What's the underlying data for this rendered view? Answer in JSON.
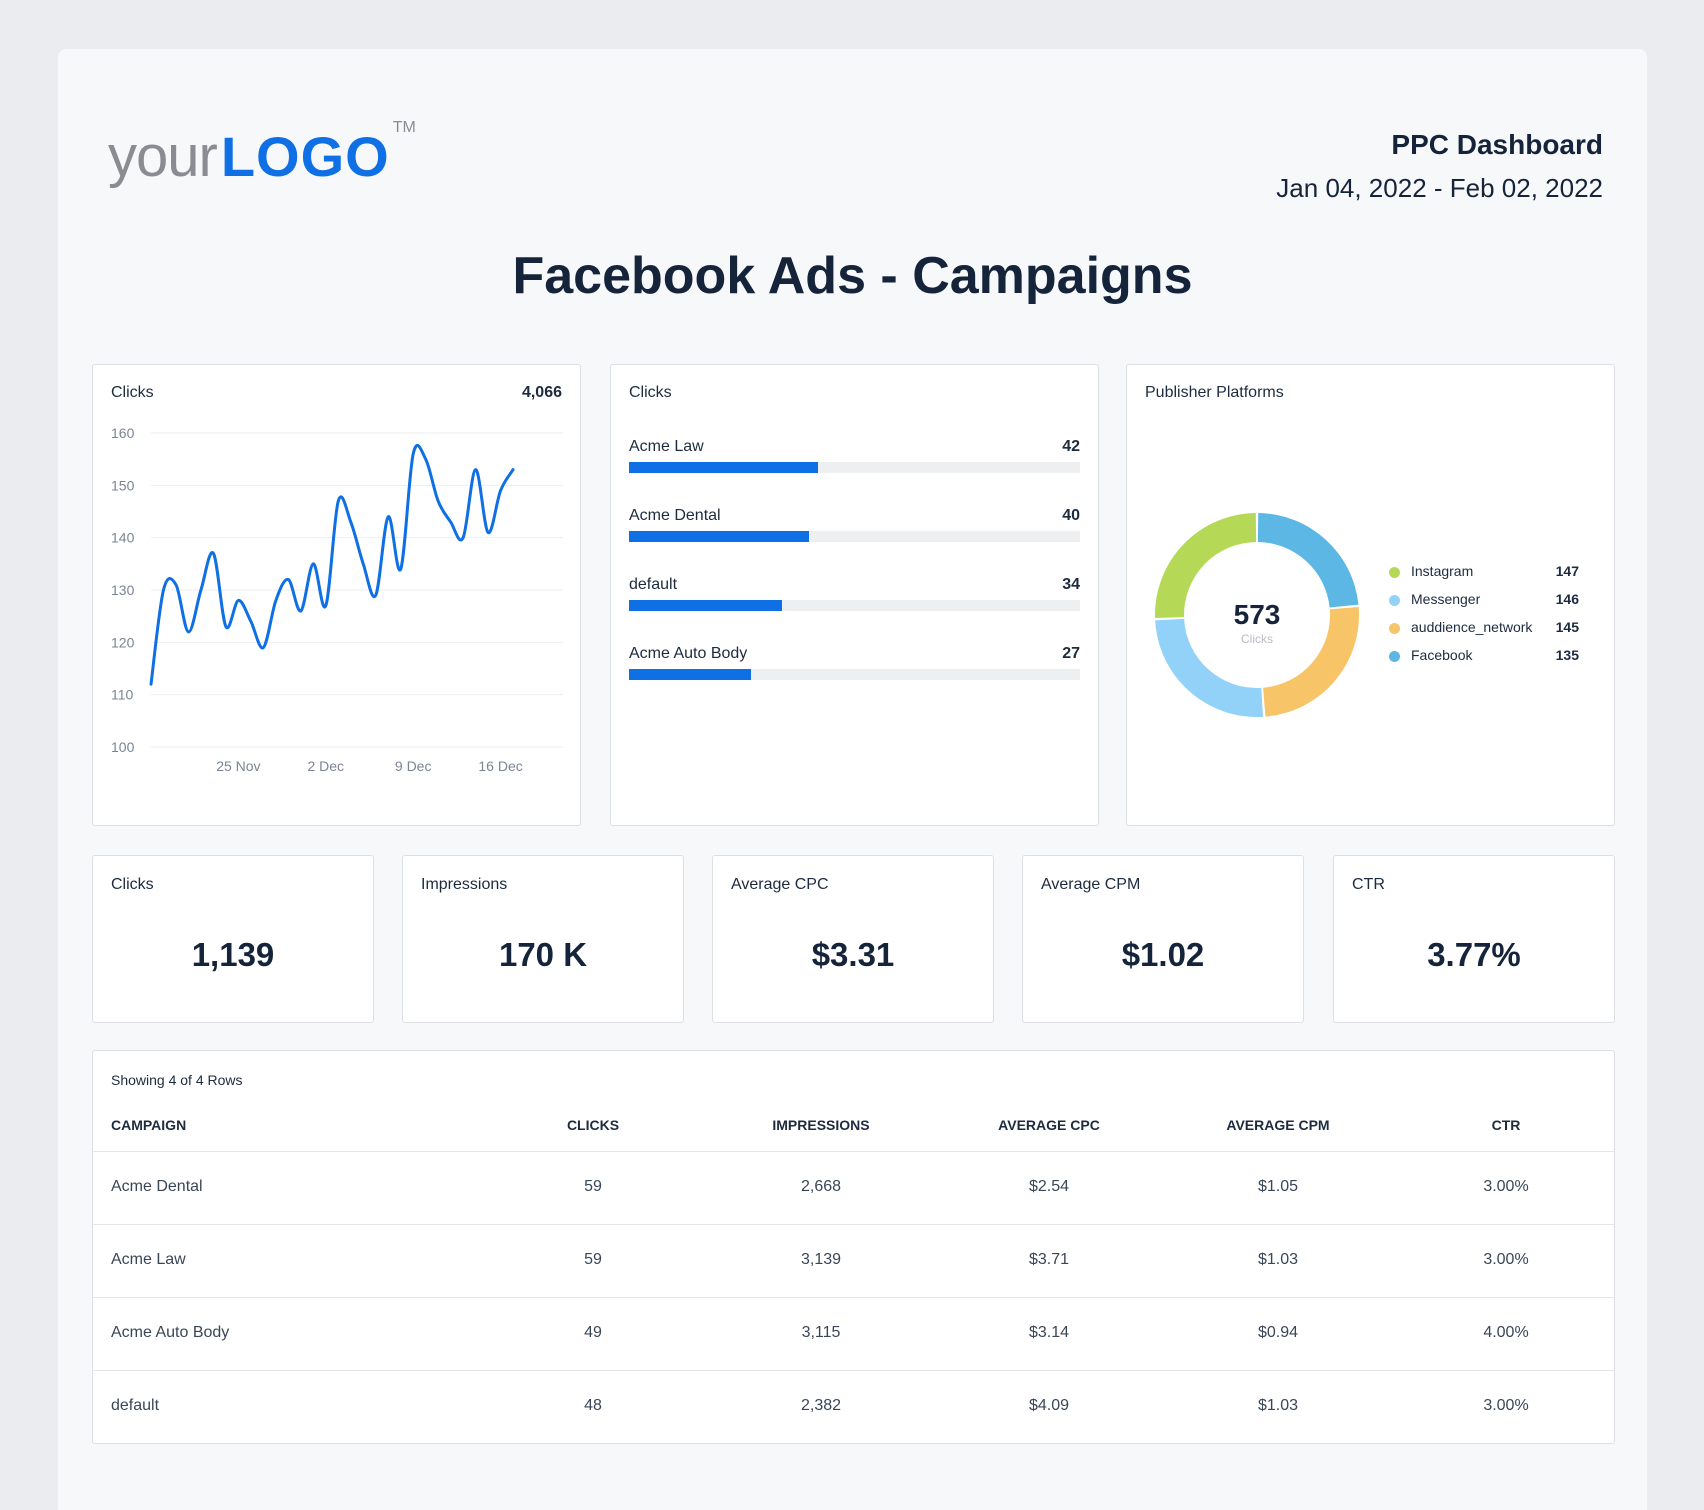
{
  "brand": {
    "your": "your",
    "logo": "LOGO",
    "tm": "TM"
  },
  "header": {
    "dashboard": "PPC Dashboard",
    "date_range": "Jan 04, 2022 - Feb 02, 2022"
  },
  "title": "Facebook Ads - Campaigns",
  "colors": {
    "accent": "#0f6fe5",
    "text": "#15243a",
    "instagram": "#b5d957",
    "messenger": "#92d2f9",
    "audience_network": "#f8c468",
    "facebook": "#5cb7e5"
  },
  "line_card": {
    "label": "Clicks",
    "total": "4,066",
    "chart_data": {
      "type": "line",
      "ylim": [
        100,
        160
      ],
      "yticks": [
        "160",
        "150",
        "140",
        "130",
        "120",
        "110",
        "100"
      ],
      "xticks": [
        {
          "label": "25 Nov",
          "x": 7
        },
        {
          "label": "2 Dec",
          "x": 14
        },
        {
          "label": "9 Dec",
          "x": 21
        },
        {
          "label": "16 Dec",
          "x": 28
        }
      ],
      "x": [
        0,
        1,
        2,
        3,
        4,
        5,
        6,
        7,
        8,
        9,
        10,
        11,
        12,
        13,
        14,
        15,
        16,
        17,
        18,
        19,
        20,
        21,
        22,
        23,
        24,
        25,
        26,
        27,
        28,
        29,
        30,
        31,
        32,
        33
      ],
      "values": [
        112,
        130,
        131,
        122,
        130,
        137,
        123,
        128,
        124,
        119,
        128,
        132,
        126,
        135,
        127,
        147,
        143,
        135,
        129,
        144,
        134,
        156,
        155,
        147,
        143,
        140,
        153,
        141,
        149,
        153,
        null,
        null,
        null,
        null
      ]
    }
  },
  "bar_card": {
    "label": "Clicks",
    "chart_data": {
      "type": "bar",
      "max": 100,
      "items": [
        {
          "name": "Acme Law",
          "value": 42
        },
        {
          "name": "Acme Dental",
          "value": 40
        },
        {
          "name": "default",
          "value": 34
        },
        {
          "name": "Acme Auto Body",
          "value": 27
        }
      ]
    }
  },
  "donut_card": {
    "label": "Publisher Platforms",
    "center_value": "573",
    "center_label": "Clicks",
    "chart_data": {
      "type": "pie",
      "items": [
        {
          "name": "Instagram",
          "value": 147,
          "color": "#b5d957"
        },
        {
          "name": "Messenger",
          "value": 146,
          "color": "#92d2f9"
        },
        {
          "name": "auddience_network",
          "value": 145,
          "color": "#f8c468"
        },
        {
          "name": "Facebook",
          "value": 135,
          "color": "#5cb7e5"
        }
      ]
    }
  },
  "kpis": [
    {
      "label": "Clicks",
      "value": "1,139"
    },
    {
      "label": "Impressions",
      "value": "170 K"
    },
    {
      "label": "Average CPC",
      "value": "$3.31"
    },
    {
      "label": "Average CPM",
      "value": "$1.02"
    },
    {
      "label": "CTR",
      "value": "3.77%"
    }
  ],
  "table": {
    "caption": "Showing 4 of 4 Rows",
    "headers": [
      "CAMPAIGN",
      "CLICKS",
      "IMPRESSIONS",
      "AVERAGE CPC",
      "AVERAGE CPM",
      "CTR"
    ],
    "rows": [
      [
        "Acme Dental",
        "59",
        "2,668",
        "$2.54",
        "$1.05",
        "3.00%"
      ],
      [
        "Acme Law",
        "59",
        "3,139",
        "$3.71",
        "$1.03",
        "3.00%"
      ],
      [
        "Acme Auto Body",
        "49",
        "3,115",
        "$3.14",
        "$0.94",
        "4.00%"
      ],
      [
        "default",
        "48",
        "2,382",
        "$4.09",
        "$1.03",
        "3.00%"
      ]
    ]
  }
}
